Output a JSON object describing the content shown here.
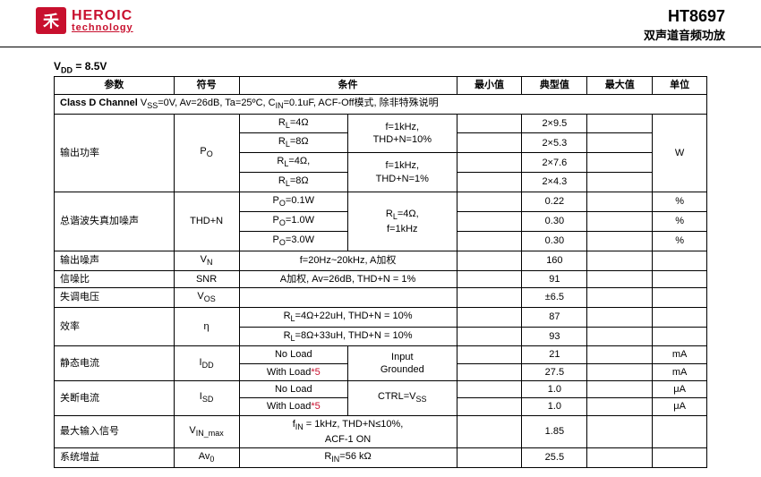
{
  "header": {
    "logo_glyph": "禾",
    "brand_top": "HEROIC",
    "brand_bottom": "technology",
    "part_number": "HT8697",
    "subtitle": "双声道音频功放"
  },
  "vdd_line": "V_DD = 8.5V",
  "columns": {
    "param": "参数",
    "symbol": "符号",
    "cond": "条件",
    "min": "最小值",
    "typ": "典型值",
    "max": "最大值",
    "unit": "单位"
  },
  "section_header": "Class D Channel Vss=0V, Av=26dB, Ta=25ºC, C_IN=0.1uF, ACF-Off模式, 除非特殊说明",
  "po": {
    "param": "输出功率",
    "symbol": "Po",
    "unit": "W",
    "c_rl4": "R_L=4Ω",
    "c_rl8": "R_L=8Ω",
    "c_rl4c": "R_L=4Ω,",
    "c_rl8b": "R_L=8Ω",
    "c_thd10": "f=1kHz, THD+N=10%",
    "c_thd1": "f=1kHz, THD+N=1%",
    "v1": "2×9.5",
    "v2": "2×5.3",
    "v3": "2×7.6",
    "v4": "2×4.3"
  },
  "thdn": {
    "param": "总谐波失真加噪声",
    "symbol": "THD+N",
    "c_p01": "Po=0.1W",
    "c_p1": "Po=1.0W",
    "c_p3": "Po=3.0W",
    "c_cond2": "R_L=4Ω, f=1kHz",
    "v1": "0.22",
    "v2": "0.30",
    "v3": "0.30",
    "unit": "%"
  },
  "vn": {
    "param": "输出噪声",
    "symbol": "V_N",
    "cond": "f=20Hz~20kHz, A加权",
    "typ": "160"
  },
  "snr": {
    "param": "信噪比",
    "symbol": "SNR",
    "cond": "A加权, Av=26dB, THD+N = 1%",
    "typ": "91"
  },
  "vos": {
    "param": "失调电压",
    "symbol": "V_OS",
    "typ": "±6.5"
  },
  "eff": {
    "param": "效率",
    "symbol": "η",
    "c1": "R_L=4Ω+22uH, THD+N = 10%",
    "c2": "R_L=8Ω+33uH, THD+N = 10%",
    "v1": "87",
    "v2": "93"
  },
  "idd": {
    "param": "静态电流",
    "symbol": "I_DD",
    "c_nl": "No Load",
    "c_wl": "With Load",
    "c_wl_note": "*5",
    "c2": "Input Grounded",
    "v1": "21",
    "v2": "27.5",
    "unit": "mA"
  },
  "isd": {
    "param": "关断电流",
    "symbol": "I_SD",
    "c_nl": "No Load",
    "c_wl": "With Load",
    "c_wl_note": "*5",
    "c2": "CTRL=Vss",
    "v1": "1.0",
    "v2": "1.0",
    "unit": "μA"
  },
  "vinmax": {
    "param": "最大输入信号",
    "symbol": "V_IN_max",
    "cond": "f_IN = 1kHz, THD+N≤10%, ACF-1 ON",
    "typ": "1.85"
  },
  "av0": {
    "param": "系统增益",
    "symbol": "Av_0",
    "cond": "R_IN=56 kΩ",
    "typ": "25.5"
  }
}
